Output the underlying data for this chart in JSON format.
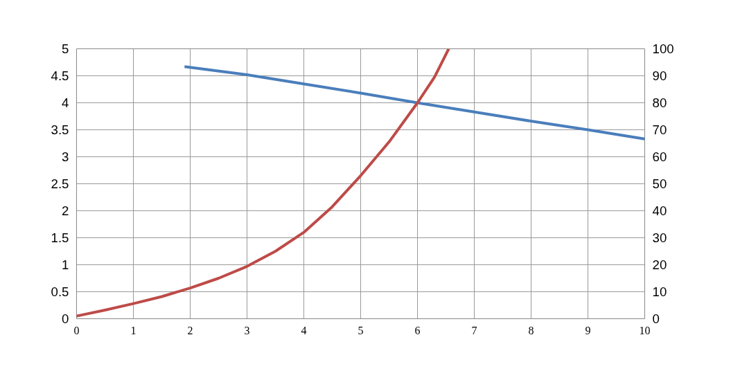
{
  "chart_data": {
    "type": "line",
    "series": [
      {
        "color": "#4a7ebb",
        "x": [
          1.9,
          3,
          4,
          5,
          6,
          7,
          8,
          9,
          10
        ],
        "values": [
          4.67,
          4.52,
          4.35,
          4.18,
          4.0,
          3.83,
          3.66,
          3.5,
          3.33
        ]
      },
      {
        "color": "#be4b48",
        "axis": "y2",
        "x": [
          0,
          0.5,
          1,
          1.5,
          2,
          2.5,
          3,
          3.5,
          4,
          4.5,
          5,
          5.5,
          6,
          6.3,
          6.55
        ],
        "values": [
          1,
          3.2,
          5.6,
          8.2,
          11.4,
          15,
          19.4,
          25,
          32,
          41.5,
          53,
          65.5,
          80,
          89.5,
          100
        ]
      }
    ],
    "xlim": [
      0,
      10
    ],
    "xticks": [
      0,
      1,
      2,
      3,
      4,
      5,
      6,
      7,
      8,
      9,
      10
    ],
    "ylim": [
      0,
      5
    ],
    "yticks": [
      0,
      0.5,
      1,
      1.5,
      2,
      2.5,
      3,
      3.5,
      4,
      4.5,
      5
    ],
    "y2lim": [
      0,
      100
    ],
    "y2ticks": [
      0,
      10,
      20,
      30,
      40,
      50,
      60,
      70,
      80,
      90,
      100
    ],
    "grid": true,
    "marker": "none",
    "line_style": "solid"
  }
}
